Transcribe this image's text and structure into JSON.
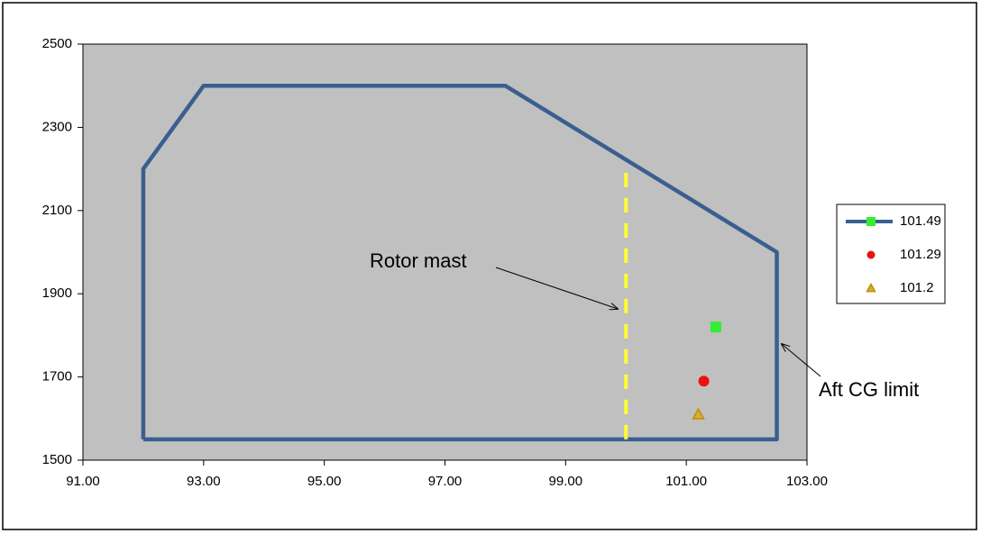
{
  "chart_data": {
    "type": "scatter",
    "xlim": [
      91,
      103
    ],
    "xticks": [
      {
        "value": 91,
        "label": "91.00"
      },
      {
        "value": 93,
        "label": "93.00"
      },
      {
        "value": 95,
        "label": "95.00"
      },
      {
        "value": 97,
        "label": "97.00"
      },
      {
        "value": 99,
        "label": "99.00"
      },
      {
        "value": 101,
        "label": "101.00"
      },
      {
        "value": 103,
        "label": "103.00"
      }
    ],
    "ylim": [
      1500,
      2500
    ],
    "yticks": [
      1500,
      1700,
      1900,
      2100,
      2300,
      2500
    ],
    "envelope": {
      "color": "#3a5f8f",
      "x": [
        92,
        92,
        93,
        98,
        102.5,
        102.5,
        92
      ],
      "y": [
        1550,
        2200,
        2400,
        2400,
        2000,
        1550,
        1550
      ]
    },
    "rotor_mast": {
      "color": "#ffff33",
      "x": [
        100,
        100
      ],
      "y": [
        1550,
        2200
      ]
    },
    "series": [
      {
        "name": "101.49",
        "color": "#33ee33",
        "marker": "square",
        "x": [
          101.49
        ],
        "values": [
          1820
        ]
      },
      {
        "name": "101.29",
        "color": "#ee1111",
        "marker": "circle",
        "x": [
          101.29
        ],
        "values": [
          1690
        ]
      },
      {
        "name": "101.2",
        "color": "#cc8800",
        "marker": "triangle",
        "x": [
          101.2
        ],
        "values": [
          1610
        ]
      }
    ],
    "annotations": [
      "Rotor mast",
      "Aft CG limit"
    ],
    "legend": "right"
  }
}
